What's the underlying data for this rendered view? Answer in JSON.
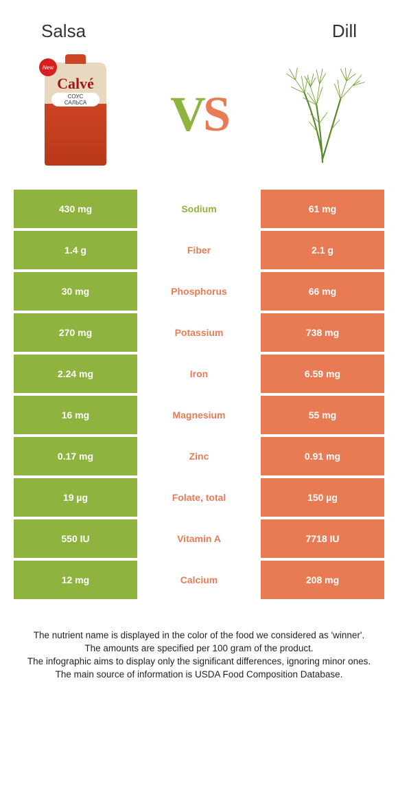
{
  "header": {
    "left_title": "Salsa",
    "right_title": "Dill",
    "vs_v": "V",
    "vs_s": "S"
  },
  "salsa_pack": {
    "new_badge": "New",
    "brand": "Calvé",
    "subtext1": "СОУС",
    "subtext2": "САЛЬСА"
  },
  "colors": {
    "green": "#8fb33f",
    "orange": "#e97b54",
    "text_dark": "#333333"
  },
  "rows": [
    {
      "left": "430 mg",
      "nutrient": "Sodium",
      "right": "61 mg",
      "winner": "green"
    },
    {
      "left": "1.4 g",
      "nutrient": "Fiber",
      "right": "2.1 g",
      "winner": "orange"
    },
    {
      "left": "30 mg",
      "nutrient": "Phosphorus",
      "right": "66 mg",
      "winner": "orange"
    },
    {
      "left": "270 mg",
      "nutrient": "Potassium",
      "right": "738 mg",
      "winner": "orange"
    },
    {
      "left": "2.24 mg",
      "nutrient": "Iron",
      "right": "6.59 mg",
      "winner": "orange"
    },
    {
      "left": "16 mg",
      "nutrient": "Magnesium",
      "right": "55 mg",
      "winner": "orange"
    },
    {
      "left": "0.17 mg",
      "nutrient": "Zinc",
      "right": "0.91 mg",
      "winner": "orange"
    },
    {
      "left": "19 µg",
      "nutrient": "Folate, total",
      "right": "150 µg",
      "winner": "orange"
    },
    {
      "left": "550 IU",
      "nutrient": "Vitamin A",
      "right": "7718 IU",
      "winner": "orange"
    },
    {
      "left": "12 mg",
      "nutrient": "Calcium",
      "right": "208 mg",
      "winner": "orange"
    }
  ],
  "footer": {
    "l1": "The nutrient name is displayed in the color of the food we considered as 'winner'.",
    "l2": "The amounts are specified per 100 gram of the product.",
    "l3": "The infographic aims to display only the significant differences, ignoring minor ones.",
    "l4": "The main source of information is USDA Food Composition Database."
  }
}
